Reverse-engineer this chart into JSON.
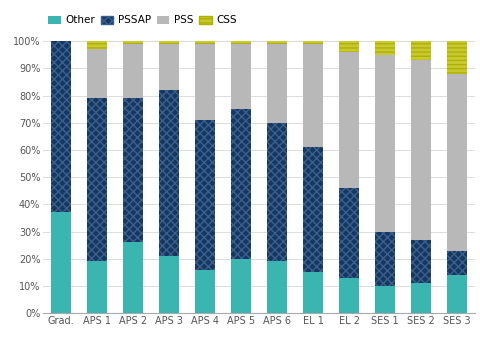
{
  "categories": [
    "Grad.",
    "APS 1",
    "APS 2",
    "APS 3",
    "APS 4",
    "APS 5",
    "APS 6",
    "EL 1",
    "EL 2",
    "SES 1",
    "SES 2",
    "SES 3"
  ],
  "other": [
    37,
    19,
    26,
    21,
    16,
    20,
    19,
    15,
    13,
    10,
    11,
    14
  ],
  "pssap": [
    63,
    60,
    53,
    61,
    55,
    55,
    51,
    46,
    33,
    20,
    16,
    9
  ],
  "pss": [
    0,
    18,
    20,
    17,
    28,
    24,
    29,
    38,
    50,
    65,
    66,
    65
  ],
  "css": [
    0,
    3,
    1,
    1,
    1,
    1,
    1,
    1,
    4,
    5,
    7,
    12
  ],
  "other_color": "#3ab5b0",
  "pssap_color": "#17375e",
  "pss_color": "#b8b8b8",
  "css_color": "#c8c832",
  "background_color": "#ffffff",
  "grid_color": "#dddddd",
  "legend_labels": [
    "Other",
    "PSSAP",
    "PSS",
    "CSS"
  ]
}
